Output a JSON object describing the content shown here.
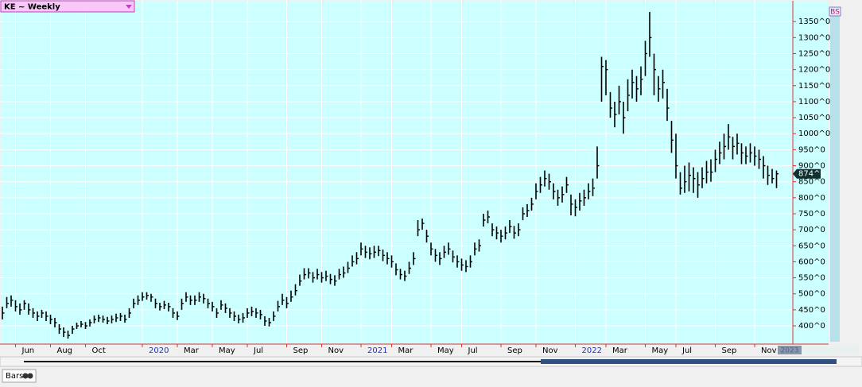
{
  "ui": {
    "symbol_label": "KE ~ Weekly",
    "badge": "BS",
    "tab": "Bars",
    "x_end_label": "2023"
  },
  "chart_data": {
    "type": "ohlc",
    "color": "#000000",
    "grid": true,
    "high": [
      460,
      490,
      495,
      480,
      470,
      480,
      470,
      455,
      445,
      450,
      445,
      435,
      425,
      405,
      395,
      385,
      400,
      410,
      415,
      412,
      420,
      432,
      435,
      432,
      428,
      432,
      438,
      440,
      435,
      455,
      485,
      495,
      505,
      505,
      500,
      485,
      472,
      478,
      472,
      455,
      445,
      485,
      505,
      495,
      495,
      505,
      500,
      485,
      475,
      455,
      480,
      470,
      455,
      445,
      435,
      440,
      455,
      460,
      455,
      450,
      430,
      425,
      445,
      478,
      500,
      490,
      510,
      530,
      560,
      580,
      580,
      568,
      578,
      568,
      572,
      562,
      558,
      578,
      585,
      600,
      620,
      630,
      660,
      650,
      645,
      650,
      650,
      638,
      630,
      620,
      595,
      578,
      572,
      600,
      630,
      730,
      735,
      700,
      660,
      640,
      630,
      650,
      660,
      635,
      620,
      610,
      605,
      620,
      660,
      670,
      750,
      760,
      720,
      710,
      700,
      710,
      730,
      712,
      720,
      770,
      780,
      800,
      845,
      865,
      885,
      875,
      845,
      825,
      835,
      865,
      810,
      795,
      815,
      825,
      845,
      860,
      960,
      1240,
      1230,
      1130,
      1100,
      1150,
      1100,
      1170,
      1200,
      1180,
      1210,
      1290,
      1380,
      1250,
      1180,
      1200,
      1140,
      1040,
      1000,
      880,
      900,
      910,
      895,
      880,
      895,
      915,
      920,
      950,
      975,
      1000,
      1030,
      990,
      1000,
      970,
      960,
      970,
      960,
      950,
      930,
      900,
      890,
      885
    ],
    "low": [
      420,
      455,
      460,
      445,
      435,
      450,
      435,
      425,
      415,
      425,
      415,
      405,
      395,
      375,
      365,
      360,
      375,
      390,
      395,
      390,
      398,
      408,
      412,
      410,
      405,
      408,
      412,
      415,
      410,
      425,
      455,
      465,
      478,
      482,
      475,
      455,
      448,
      452,
      445,
      425,
      418,
      450,
      475,
      465,
      465,
      475,
      470,
      455,
      445,
      425,
      450,
      440,
      425,
      415,
      408,
      410,
      425,
      430,
      425,
      420,
      400,
      398,
      415,
      445,
      465,
      455,
      475,
      495,
      525,
      545,
      548,
      535,
      545,
      535,
      540,
      530,
      525,
      545,
      550,
      565,
      585,
      592,
      620,
      612,
      608,
      612,
      618,
      602,
      592,
      582,
      558,
      545,
      540,
      562,
      590,
      680,
      700,
      660,
      620,
      600,
      590,
      612,
      622,
      598,
      582,
      572,
      568,
      582,
      620,
      632,
      710,
      720,
      680,
      670,
      660,
      670,
      690,
      672,
      680,
      730,
      740,
      760,
      795,
      815,
      835,
      825,
      795,
      775,
      785,
      815,
      745,
      742,
      760,
      775,
      795,
      805,
      860,
      1100,
      1120,
      1050,
      1020,
      1060,
      1000,
      1070,
      1110,
      1100,
      1120,
      1180,
      1240,
      1120,
      1100,
      1110,
      1040,
      940,
      860,
      810,
      815,
      820,
      815,
      800,
      830,
      845,
      850,
      880,
      905,
      920,
      950,
      920,
      935,
      905,
      905,
      910,
      900,
      890,
      860,
      840,
      845,
      830
    ],
    "close": [
      440,
      470,
      480,
      460,
      450,
      470,
      450,
      440,
      430,
      440,
      430,
      420,
      410,
      390,
      380,
      370,
      390,
      400,
      405,
      400,
      410,
      420,
      425,
      420,
      415,
      420,
      425,
      430,
      420,
      440,
      470,
      480,
      490,
      495,
      490,
      470,
      460,
      465,
      460,
      440,
      430,
      470,
      490,
      480,
      480,
      490,
      485,
      470,
      460,
      440,
      465,
      455,
      440,
      430,
      420,
      425,
      440,
      445,
      440,
      435,
      415,
      410,
      430,
      460,
      480,
      470,
      490,
      510,
      540,
      560,
      565,
      550,
      560,
      550,
      555,
      545,
      540,
      560,
      565,
      580,
      600,
      610,
      640,
      630,
      625,
      630,
      635,
      620,
      610,
      600,
      575,
      560,
      555,
      580,
      610,
      700,
      720,
      680,
      640,
      620,
      610,
      630,
      640,
      615,
      600,
      590,
      585,
      600,
      640,
      650,
      730,
      740,
      700,
      690,
      680,
      690,
      710,
      690,
      700,
      750,
      760,
      780,
      820,
      840,
      860,
      850,
      820,
      800,
      810,
      840,
      780,
      770,
      790,
      800,
      820,
      830,
      900,
      1210,
      1200,
      1080,
      1060,
      1100,
      1050,
      1120,
      1160,
      1140,
      1170,
      1250,
      1300,
      1200,
      1140,
      1160,
      1080,
      980,
      900,
      830,
      850,
      870,
      860,
      840,
      860,
      880,
      880,
      920,
      940,
      960,
      990,
      960,
      970,
      940,
      930,
      940,
      930,
      920,
      900,
      870,
      860,
      874.75
    ],
    "last_price": {
      "value": 874.75,
      "label": "874^6"
    },
    "ylim": [
      343,
      1415
    ],
    "yticks": [
      {
        "value": 400,
        "label": "400^0"
      },
      {
        "value": 450,
        "label": "450^0"
      },
      {
        "value": 500,
        "label": "500^0"
      },
      {
        "value": 550,
        "label": "550^0"
      },
      {
        "value": 600,
        "label": "600^0"
      },
      {
        "value": 650,
        "label": "650^0"
      },
      {
        "value": 700,
        "label": "700^0"
      },
      {
        "value": 750,
        "label": "750^0"
      },
      {
        "value": 800,
        "label": "800^0"
      },
      {
        "value": 850,
        "label": "850^0"
      },
      {
        "value": 900,
        "label": "900^0"
      },
      {
        "value": 950,
        "label": "950^0"
      },
      {
        "value": 1000,
        "label": "1000^0"
      },
      {
        "value": 1050,
        "label": "1050^0"
      },
      {
        "value": 1100,
        "label": "1100^0"
      },
      {
        "value": 1150,
        "label": "1150^0"
      },
      {
        "value": 1200,
        "label": "1200^0"
      },
      {
        "value": 1250,
        "label": "1250^0"
      },
      {
        "value": 1300,
        "label": "1300^0"
      },
      {
        "value": 1350,
        "label": "1350^0"
      }
    ],
    "xticks": [
      {
        "value": 3,
        "label": "Jun"
      },
      {
        "value": 11,
        "label": "Aug"
      },
      {
        "value": 19,
        "label": "Oct"
      },
      {
        "value": 32,
        "label": "2020",
        "year": true
      },
      {
        "value": 40,
        "label": "Mar"
      },
      {
        "value": 48,
        "label": "May"
      },
      {
        "value": 56,
        "label": "Jul"
      },
      {
        "value": 65,
        "label": "Sep"
      },
      {
        "value": 73,
        "label": "Nov"
      },
      {
        "value": 82,
        "label": "2021",
        "year": true
      },
      {
        "value": 89,
        "label": "Mar"
      },
      {
        "value": 98,
        "label": "May"
      },
      {
        "value": 105,
        "label": "Jul"
      },
      {
        "value": 114,
        "label": "Sep"
      },
      {
        "value": 122,
        "label": "Nov"
      },
      {
        "value": 131,
        "label": "2022",
        "year": true
      },
      {
        "value": 138,
        "label": "Mar"
      },
      {
        "value": 147,
        "label": "May"
      },
      {
        "value": 154,
        "label": "Jul"
      },
      {
        "value": 163,
        "label": "Sep"
      },
      {
        "value": 172,
        "label": "Nov"
      }
    ]
  }
}
